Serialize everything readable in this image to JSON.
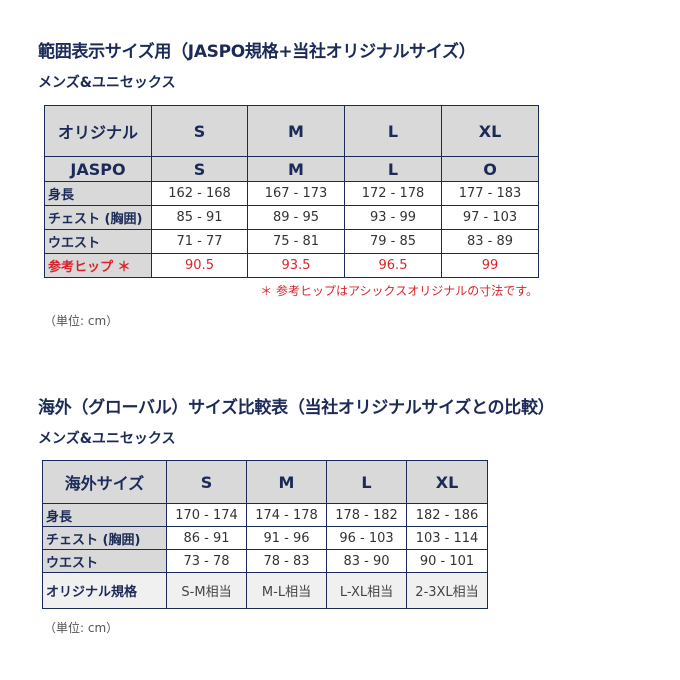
{
  "section1": {
    "title": "範囲表示サイズ用（JASPO規格+当社オリジナルサイズ）",
    "subtitle": "メンズ&ユニセックス",
    "header": [
      "オリジナル",
      "S",
      "M",
      "L",
      "XL"
    ],
    "jaspo": [
      "JASPO",
      "S",
      "M",
      "L",
      "O"
    ],
    "rows": [
      {
        "label": "身長",
        "values": [
          "162 - 168",
          "167 - 173",
          "172 - 178",
          "177 - 183"
        ]
      },
      {
        "label": "チェスト (胸囲)",
        "values": [
          "85 - 91",
          "89 - 95",
          "93 - 99",
          "97 - 103"
        ]
      },
      {
        "label": "ウエスト",
        "values": [
          "71 - 77",
          "75 - 81",
          "79 - 85",
          "83 - 89"
        ]
      },
      {
        "label": "参考ヒップ ＊",
        "values": [
          "90.5",
          "93.5",
          "96.5",
          "99"
        ]
      }
    ],
    "note": "＊ 参考ヒップはアシックスオリジナルの寸法です。",
    "unit": "（単位: cm）"
  },
  "section2": {
    "title": "海外（グローバル）サイズ比較表（当社オリジナルサイズとの比較）",
    "subtitle": "メンズ&ユニセックス",
    "header": [
      "海外サイズ",
      "S",
      "M",
      "L",
      "XL"
    ],
    "rows": [
      {
        "label": "身長",
        "values": [
          "170 - 174",
          "174 - 178",
          "178 - 182",
          "182 - 186"
        ]
      },
      {
        "label": "チェスト (胸囲)",
        "values": [
          "86 - 91",
          "91 - 96",
          "96 - 103",
          "103 - 114"
        ]
      },
      {
        "label": "ウエスト",
        "values": [
          "73 - 78",
          "78 - 83",
          "83 - 90",
          "90 - 101"
        ]
      },
      {
        "label": "オリジナル規格",
        "values": [
          "S-M相当",
          "M-L相当",
          "L-XL相当",
          "2-3XL相当"
        ]
      }
    ],
    "unit": "（単位: cm）"
  },
  "colors": {
    "text": "#1b2a57",
    "header_bg": "#d9d9d9",
    "accent_red": "#d8242b"
  }
}
